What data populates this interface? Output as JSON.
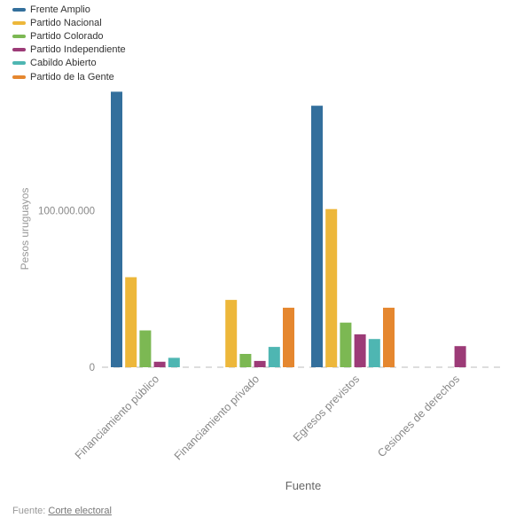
{
  "chart_data": {
    "type": "bar",
    "categories": [
      "Financiamiento público",
      "Financiamiento privado",
      "Egresos previstos",
      "Cesiones de derechos"
    ],
    "series": [
      {
        "name": "Frente Amplio",
        "color": "#336f9c",
        "values": [
          176000000,
          0,
          167000000,
          0
        ]
      },
      {
        "name": "Partido Nacional",
        "color": "#edb73a",
        "values": [
          57500000,
          43000000,
          101000000,
          0
        ]
      },
      {
        "name": "Partido Colorado",
        "color": "#7cb853",
        "values": [
          23500000,
          8500000,
          28500000,
          0
        ]
      },
      {
        "name": "Partido Independiente",
        "color": "#9c3b77",
        "values": [
          3500000,
          4000000,
          21000000,
          13500000
        ]
      },
      {
        "name": "Cabildo Abierto",
        "color": "#4eb6b2",
        "values": [
          6000000,
          13000000,
          18000000,
          0
        ]
      },
      {
        "name": "Partido de la Gente",
        "color": "#e5872f",
        "values": [
          0,
          38000000,
          38000000,
          0
        ]
      }
    ],
    "ylabel": "Pesos uruguayos",
    "xlabel": "Fuente",
    "yticks": [
      "0",
      "100.000.000"
    ],
    "ylim": [
      0,
      180000000
    ]
  },
  "source": {
    "prefix": "Fuente:",
    "link_text": "Corte electoral"
  }
}
